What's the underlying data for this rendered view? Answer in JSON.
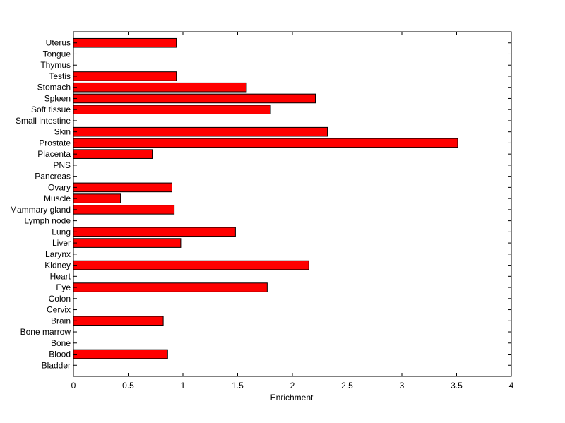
{
  "chart_data": {
    "type": "bar",
    "orientation": "horizontal",
    "title": "",
    "xlabel": "Enrichment",
    "ylabel": "",
    "xlim": [
      0,
      4
    ],
    "xticks": [
      "0",
      "0.5",
      "1",
      "1.5",
      "2",
      "2.5",
      "3",
      "3.5",
      "4"
    ],
    "grid": false,
    "legend": "none",
    "bar_color": "#ff0000",
    "bar_edge_color": "#000000",
    "categories": [
      "Bladder",
      "Blood",
      "Bone",
      "Bone marrow",
      "Brain",
      "Cervix",
      "Colon",
      "Eye",
      "Heart",
      "Kidney",
      "Larynx",
      "Liver",
      "Lung",
      "Lymph node",
      "Mammary gland",
      "Muscle",
      "Ovary",
      "Pancreas",
      "PNS",
      "Placenta",
      "Prostate",
      "Skin",
      "Small intestine",
      "Soft tissue",
      "Spleen",
      "Stomach",
      "Testis",
      "Thymus",
      "Tongue",
      "Uterus"
    ],
    "values": [
      0,
      0.86,
      0,
      0,
      0.82,
      0,
      0,
      1.77,
      0,
      2.15,
      0,
      0.98,
      1.48,
      0,
      0.92,
      0.43,
      0.9,
      0,
      0,
      0.72,
      3.51,
      2.32,
      0,
      1.8,
      2.21,
      1.58,
      0.94,
      0,
      0,
      0.94
    ]
  }
}
